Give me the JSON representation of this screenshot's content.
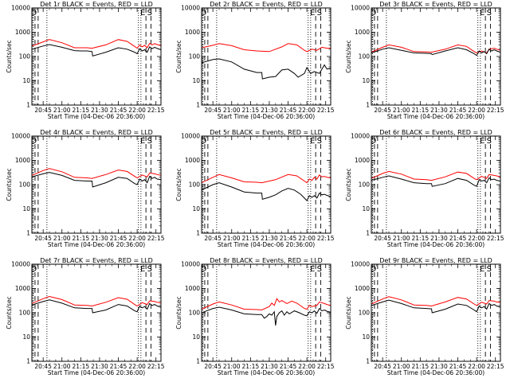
{
  "chart_data": {
    "type": "line",
    "x_tick_labels": [
      "20:45",
      "21:00",
      "21:15",
      "21:30",
      "21:45",
      "22:00",
      "22:15"
    ],
    "x_tick_minutes": [
      45,
      60,
      75,
      90,
      105,
      120,
      135
    ],
    "xlim_minutes": [
      36,
      139
    ],
    "ylim": [
      1,
      10000
    ],
    "y_scale": "log",
    "y_tick_labels": [
      "1",
      "10",
      "100",
      "1000",
      "10000"
    ],
    "ylabel": "Counts/sec",
    "xlabel": "Start Time (04-Dec-06 20:36:00)",
    "series_colors": {
      "events": "#000000",
      "lld": "#ff0000"
    },
    "markers": {
      "dotted_minutes": [
        37,
        48,
        121,
        123
      ],
      "dashed_minutes": [
        38.5,
        41,
        127,
        131
      ],
      "labels": [
        {
          "text": "D",
          "minute": 37.5
        },
        {
          "text": "E",
          "minute": 124.5
        },
        {
          "text": "S",
          "minute": 130
        }
      ]
    },
    "panels": [
      {
        "title": "Det 1r BLACK = Events, RED = LLD",
        "events": {
          "x": [
            36,
            45,
            50,
            60,
            70,
            75,
            80,
            84,
            84.5,
            95,
            105,
            112,
            118,
            120,
            122,
            124,
            126,
            128,
            130,
            132,
            134,
            136,
            139
          ],
          "y": [
            200,
            270,
            310,
            240,
            175,
            170,
            170,
            160,
            105,
            150,
            230,
            200,
            150,
            130,
            210,
            170,
            190,
            150,
            250,
            210,
            240,
            215,
            190
          ]
        },
        "lld": {
          "x": [
            36,
            45,
            50,
            60,
            70,
            80,
            84,
            95,
            105,
            112,
            118,
            120,
            122,
            124,
            126,
            128,
            130,
            132,
            134,
            136,
            139
          ],
          "y": [
            270,
            400,
            500,
            370,
            230,
            230,
            220,
            300,
            500,
            420,
            260,
            220,
            300,
            250,
            290,
            230,
            350,
            300,
            340,
            310,
            280
          ]
        }
      },
      {
        "title": "Det 2r BLACK = Events, RED = LLD",
        "events": {
          "x": [
            36,
            45,
            50,
            60,
            70,
            80,
            84,
            84.5,
            90,
            95,
            100,
            105,
            110,
            113,
            118,
            120,
            123,
            126,
            130,
            134,
            136,
            139
          ],
          "y": [
            55,
            75,
            80,
            60,
            30,
            22,
            22,
            12,
            14,
            15,
            28,
            30,
            20,
            14,
            20,
            35,
            20,
            24,
            20,
            45,
            30,
            35
          ]
        },
        "lld": {
          "x": [
            36,
            45,
            50,
            60,
            70,
            80,
            90,
            100,
            105,
            112,
            118,
            120,
            124,
            128,
            132,
            136,
            139
          ],
          "y": [
            230,
            290,
            340,
            280,
            190,
            170,
            160,
            250,
            340,
            300,
            180,
            160,
            200,
            180,
            240,
            220,
            220
          ]
        }
      },
      {
        "title": "Det 3r BLACK = Events, RED = LLD",
        "events": {
          "x": [
            36,
            45,
            50,
            60,
            70,
            80,
            84,
            84.5,
            95,
            105,
            112,
            118,
            120,
            122,
            124,
            126,
            128,
            130,
            132,
            134,
            136,
            139
          ],
          "y": [
            140,
            200,
            230,
            180,
            140,
            135,
            130,
            120,
            170,
            230,
            190,
            130,
            110,
            170,
            140,
            160,
            130,
            200,
            170,
            190,
            170,
            150
          ]
        },
        "lld": {
          "x": [
            36,
            45,
            50,
            60,
            70,
            80,
            84,
            95,
            105,
            112,
            118,
            120,
            124,
            128,
            130,
            134,
            136,
            139
          ],
          "y": [
            150,
            240,
            300,
            240,
            160,
            155,
            150,
            200,
            300,
            260,
            160,
            140,
            170,
            140,
            200,
            220,
            200,
            180
          ]
        }
      },
      {
        "title": "Det 4r BLACK = Events, RED = LLD",
        "events": {
          "x": [
            36,
            45,
            50,
            60,
            70,
            80,
            84,
            84.5,
            95,
            105,
            112,
            118,
            120,
            122,
            124,
            126,
            128,
            130,
            132,
            134,
            136,
            139
          ],
          "y": [
            210,
            280,
            320,
            240,
            150,
            140,
            140,
            80,
            120,
            200,
            180,
            110,
            100,
            170,
            140,
            160,
            120,
            220,
            180,
            200,
            170,
            160
          ]
        },
        "lld": {
          "x": [
            36,
            45,
            50,
            60,
            70,
            80,
            84,
            95,
            105,
            112,
            118,
            120,
            124,
            128,
            130,
            134,
            136,
            139
          ],
          "y": [
            240,
            380,
            460,
            340,
            200,
            190,
            180,
            260,
            400,
            350,
            220,
            190,
            250,
            210,
            300,
            280,
            260,
            240
          ]
        }
      },
      {
        "title": "Det 5r BLACK = Events, RED = LLD",
        "events": {
          "x": [
            36,
            45,
            50,
            60,
            70,
            80,
            84,
            84.5,
            90,
            95,
            100,
            105,
            110,
            115,
            118,
            120,
            122,
            124,
            126,
            128,
            130,
            132,
            134,
            136,
            139
          ],
          "y": [
            60,
            100,
            120,
            80,
            50,
            45,
            45,
            25,
            30,
            38,
            55,
            70,
            60,
            40,
            28,
            22,
            35,
            30,
            35,
            28,
            45,
            38,
            40,
            36,
            32
          ]
        },
        "lld": {
          "x": [
            36,
            45,
            50,
            60,
            70,
            80,
            84,
            95,
            105,
            112,
            118,
            120,
            122,
            124,
            126,
            128,
            130,
            132,
            134,
            136,
            139
          ],
          "y": [
            120,
            200,
            260,
            190,
            130,
            125,
            120,
            160,
            260,
            230,
            140,
            120,
            170,
            150,
            200,
            170,
            250,
            210,
            220,
            200,
            190
          ]
        }
      },
      {
        "title": "Det 6r BLACK = Events, RED = LLD",
        "events": {
          "x": [
            36,
            45,
            50,
            60,
            70,
            80,
            84,
            84.5,
            95,
            105,
            112,
            118,
            120,
            122,
            124,
            126,
            128,
            130,
            132,
            134,
            136,
            139
          ],
          "y": [
            150,
            200,
            230,
            170,
            120,
            110,
            110,
            85,
            110,
            180,
            150,
            95,
            85,
            160,
            140,
            150,
            120,
            190,
            160,
            170,
            150,
            140
          ]
        },
        "lld": {
          "x": [
            36,
            45,
            50,
            60,
            70,
            80,
            84,
            95,
            105,
            112,
            118,
            120,
            124,
            128,
            130,
            134,
            136,
            139
          ],
          "y": [
            180,
            290,
            350,
            270,
            170,
            160,
            150,
            210,
            330,
            290,
            180,
            160,
            220,
            180,
            260,
            240,
            230,
            210
          ]
        }
      },
      {
        "title": "Det 7r BLACK = Events, RED = LLD",
        "events": {
          "x": [
            36,
            45,
            50,
            60,
            70,
            80,
            84,
            84.5,
            95,
            105,
            112,
            118,
            120,
            122,
            124,
            126,
            128,
            130,
            132,
            134,
            136,
            139
          ],
          "y": [
            210,
            290,
            340,
            250,
            160,
            150,
            150,
            100,
            130,
            220,
            190,
            120,
            110,
            190,
            160,
            180,
            140,
            240,
            200,
            220,
            190,
            170
          ]
        },
        "lld": {
          "x": [
            36,
            45,
            50,
            60,
            70,
            80,
            84,
            95,
            105,
            112,
            118,
            120,
            124,
            128,
            130,
            134,
            136,
            139
          ],
          "y": [
            240,
            380,
            470,
            350,
            210,
            200,
            190,
            270,
            420,
            360,
            220,
            190,
            260,
            220,
            310,
            290,
            270,
            250
          ]
        }
      },
      {
        "title": "Det 8r BLACK = Events, RED = LLD",
        "events": {
          "x": [
            36,
            45,
            50,
            60,
            70,
            80,
            84,
            86,
            88,
            90,
            92,
            94,
            95,
            96,
            98,
            100,
            102,
            104,
            106,
            110,
            114,
            118,
            120,
            122,
            124,
            126,
            128,
            130,
            132,
            134,
            136,
            139
          ],
          "y": [
            100,
            150,
            170,
            130,
            90,
            85,
            85,
            60,
            70,
            90,
            80,
            110,
            30,
            70,
            100,
            120,
            80,
            110,
            90,
            120,
            100,
            80,
            75,
            110,
            100,
            120,
            95,
            150,
            120,
            130,
            115,
            105
          ]
        },
        "lld": {
          "x": [
            36,
            45,
            50,
            60,
            70,
            80,
            84,
            90,
            92,
            94,
            96,
            98,
            100,
            104,
            108,
            112,
            118,
            120,
            122,
            124,
            128,
            130,
            134,
            136,
            139
          ],
          "y": [
            140,
            230,
            280,
            210,
            140,
            135,
            130,
            180,
            250,
            200,
            380,
            280,
            320,
            240,
            300,
            250,
            150,
            140,
            200,
            180,
            200,
            280,
            240,
            220,
            200
          ]
        }
      },
      {
        "title": "Det 9r BLACK = Events, RED = LLD",
        "events": {
          "x": [
            36,
            45,
            50,
            60,
            70,
            80,
            84,
            84.5,
            95,
            105,
            112,
            118,
            120,
            122,
            124,
            126,
            128,
            130,
            132,
            134,
            136,
            139
          ],
          "y": [
            200,
            280,
            330,
            240,
            160,
            150,
            145,
            100,
            140,
            230,
            200,
            130,
            110,
            190,
            160,
            180,
            140,
            240,
            200,
            220,
            190,
            170
          ]
        },
        "lld": {
          "x": [
            36,
            45,
            50,
            60,
            70,
            80,
            84,
            95,
            105,
            112,
            118,
            120,
            124,
            128,
            130,
            134,
            136,
            139
          ],
          "y": [
            230,
            370,
            460,
            340,
            210,
            200,
            190,
            280,
            430,
            370,
            230,
            200,
            270,
            230,
            320,
            300,
            280,
            260
          ]
        }
      }
    ]
  }
}
